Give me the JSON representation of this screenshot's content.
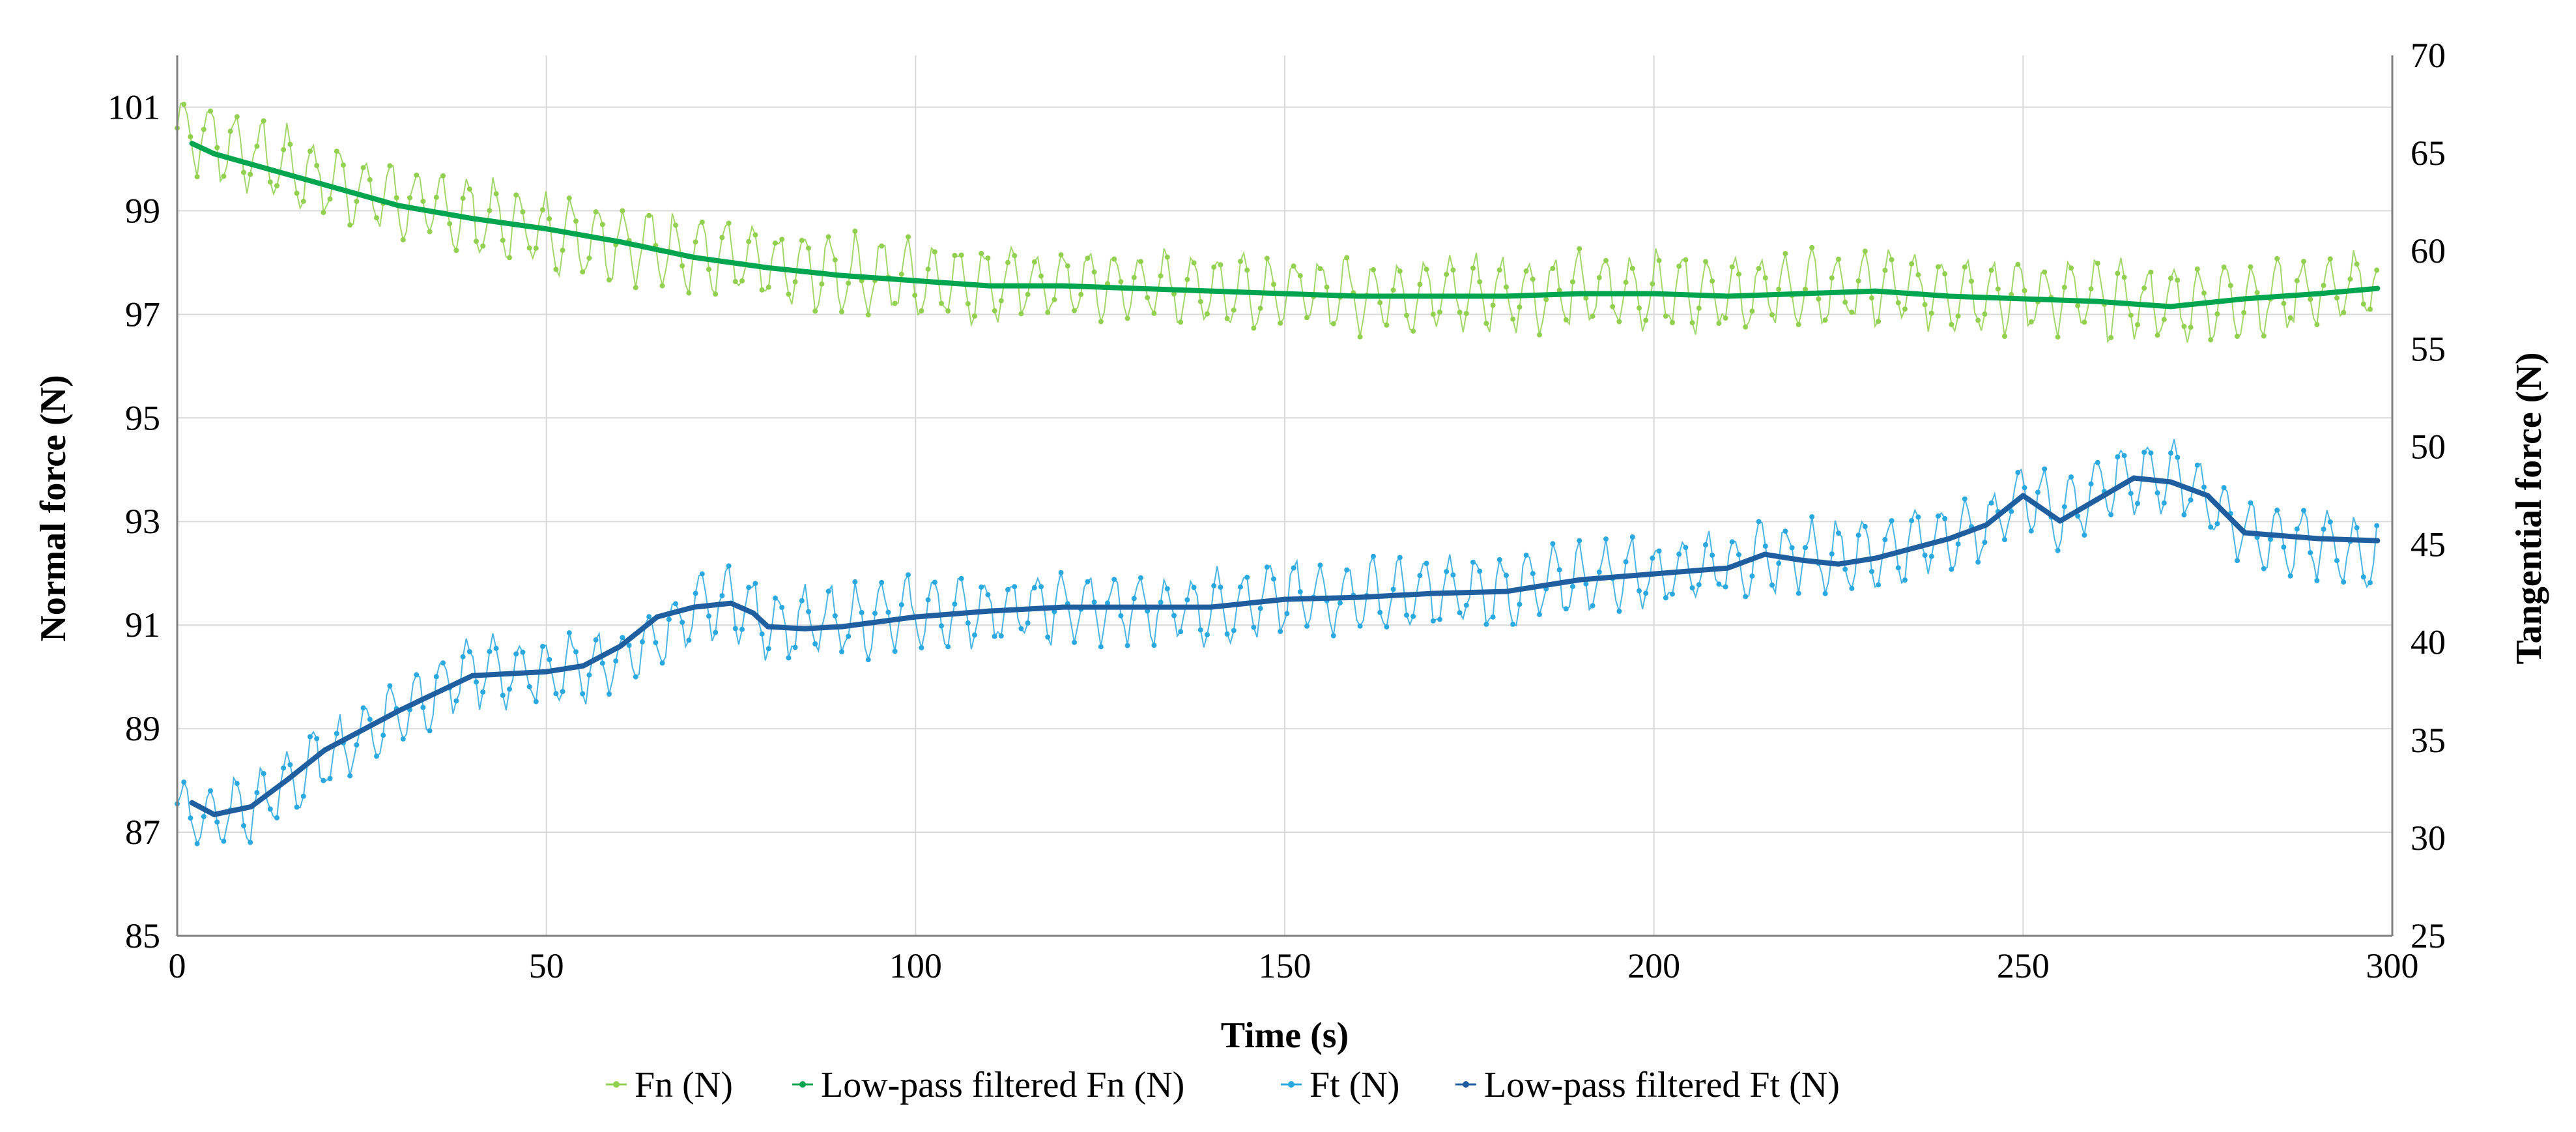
{
  "chart_data": {
    "type": "line",
    "title": "",
    "xlabel": "Time (s)",
    "ylabel": "Normal force (N)",
    "y2label": "Tangential force (N)",
    "xlim": [
      0,
      300
    ],
    "ylim": [
      85,
      102
    ],
    "y2lim": [
      25,
      70
    ],
    "xticks": [
      "0",
      "50",
      "100",
      "150",
      "200",
      "250",
      "300"
    ],
    "yticks": [
      "85",
      "87",
      "89",
      "91",
      "93",
      "95",
      "97",
      "99",
      "101"
    ],
    "y2ticks": [
      "25",
      "30",
      "35",
      "40",
      "45",
      "50",
      "55",
      "60",
      "65",
      "70"
    ],
    "xtick_values": [
      0,
      50,
      100,
      150,
      200,
      250,
      300
    ],
    "ytick_values": [
      85,
      87,
      89,
      91,
      93,
      95,
      97,
      99,
      101
    ],
    "y2tick_values": [
      25,
      30,
      35,
      40,
      45,
      50,
      55,
      60,
      65,
      70
    ],
    "grid": true,
    "legend_position": "bottom",
    "colors": {
      "fn_raw": "#92d050",
      "fn_filtered": "#00a550",
      "ft_raw": "#2aa8e0",
      "ft_filtered": "#1f5fa0",
      "grid": "#d9d9d9"
    },
    "series": [
      {
        "name": "Fn (N)",
        "axis": "left",
        "style": "raw",
        "oscillation_amplitude": 0.65,
        "oscillation_period": 3.5,
        "x": [
          0,
          10,
          20,
          30,
          40,
          50,
          60,
          70,
          80,
          90,
          100,
          110,
          120,
          130,
          140,
          150,
          160,
          170,
          180,
          190,
          200,
          210,
          220,
          230,
          240,
          250,
          260,
          270,
          280,
          290,
          298
        ],
        "y": [
          100.6,
          100.1,
          99.6,
          99.2,
          98.9,
          98.6,
          98.4,
          98.2,
          97.9,
          97.8,
          97.7,
          97.6,
          97.6,
          97.55,
          97.5,
          97.45,
          97.4,
          97.4,
          97.4,
          97.45,
          97.45,
          97.45,
          97.45,
          97.5,
          97.45,
          97.35,
          97.3,
          97.2,
          97.3,
          97.45,
          97.55
        ]
      },
      {
        "name": "Low-pass filtered Fn (N)",
        "axis": "left",
        "style": "filtered",
        "x": [
          2,
          5,
          10,
          15,
          20,
          30,
          40,
          50,
          60,
          70,
          80,
          90,
          100,
          110,
          120,
          130,
          140,
          150,
          160,
          170,
          180,
          190,
          200,
          210,
          220,
          230,
          240,
          250,
          260,
          265,
          270,
          280,
          290,
          298
        ],
        "y": [
          100.3,
          100.1,
          99.9,
          99.7,
          99.5,
          99.1,
          98.85,
          98.65,
          98.4,
          98.1,
          97.9,
          97.75,
          97.65,
          97.55,
          97.55,
          97.5,
          97.45,
          97.4,
          97.35,
          97.35,
          97.35,
          97.4,
          97.4,
          97.35,
          97.4,
          97.45,
          97.35,
          97.3,
          97.25,
          97.2,
          97.15,
          97.3,
          97.4,
          97.5
        ]
      },
      {
        "name": "Ft (N)",
        "axis": "right",
        "style": "raw",
        "oscillation_amplitude": 1.6,
        "oscillation_period": 3.5,
        "x": [
          0,
          5,
          10,
          20,
          30,
          40,
          50,
          60,
          70,
          75,
          80,
          90,
          100,
          110,
          120,
          130,
          140,
          150,
          160,
          170,
          180,
          190,
          200,
          210,
          220,
          230,
          240,
          245,
          250,
          255,
          260,
          265,
          270,
          275,
          280,
          290,
          298
        ],
        "y": [
          31.5,
          31.0,
          31.5,
          34.0,
          36.5,
          38.5,
          38.5,
          39.0,
          41.5,
          42.2,
          41.0,
          41.0,
          41.5,
          41.7,
          41.8,
          41.7,
          41.8,
          42.3,
          42.4,
          42.5,
          42.6,
          43.3,
          43.6,
          44.0,
          44.5,
          44.5,
          45.5,
          45.8,
          47.8,
          46.5,
          47.8,
          48.5,
          48.5,
          47.5,
          45.5,
          45.0,
          44.5
        ]
      },
      {
        "name": "Low-pass filtered Ft (N)",
        "axis": "right",
        "style": "filtered",
        "x": [
          2,
          5,
          10,
          15,
          20,
          30,
          40,
          50,
          55,
          60,
          65,
          70,
          75,
          78,
          80,
          85,
          90,
          100,
          110,
          120,
          130,
          140,
          150,
          160,
          170,
          180,
          190,
          200,
          210,
          215,
          220,
          225,
          230,
          240,
          245,
          250,
          255,
          260,
          265,
          270,
          275,
          280,
          290,
          298
        ],
        "y": [
          31.8,
          31.2,
          31.6,
          33.0,
          34.5,
          36.5,
          38.3,
          38.5,
          38.8,
          39.8,
          41.3,
          41.8,
          42.0,
          41.5,
          40.8,
          40.7,
          40.8,
          41.3,
          41.6,
          41.8,
          41.8,
          41.8,
          42.2,
          42.3,
          42.5,
          42.6,
          43.2,
          43.5,
          43.8,
          44.5,
          44.2,
          44.0,
          44.3,
          45.3,
          46.0,
          47.5,
          46.2,
          47.3,
          48.4,
          48.2,
          47.5,
          45.6,
          45.3,
          45.2
        ]
      }
    ]
  }
}
